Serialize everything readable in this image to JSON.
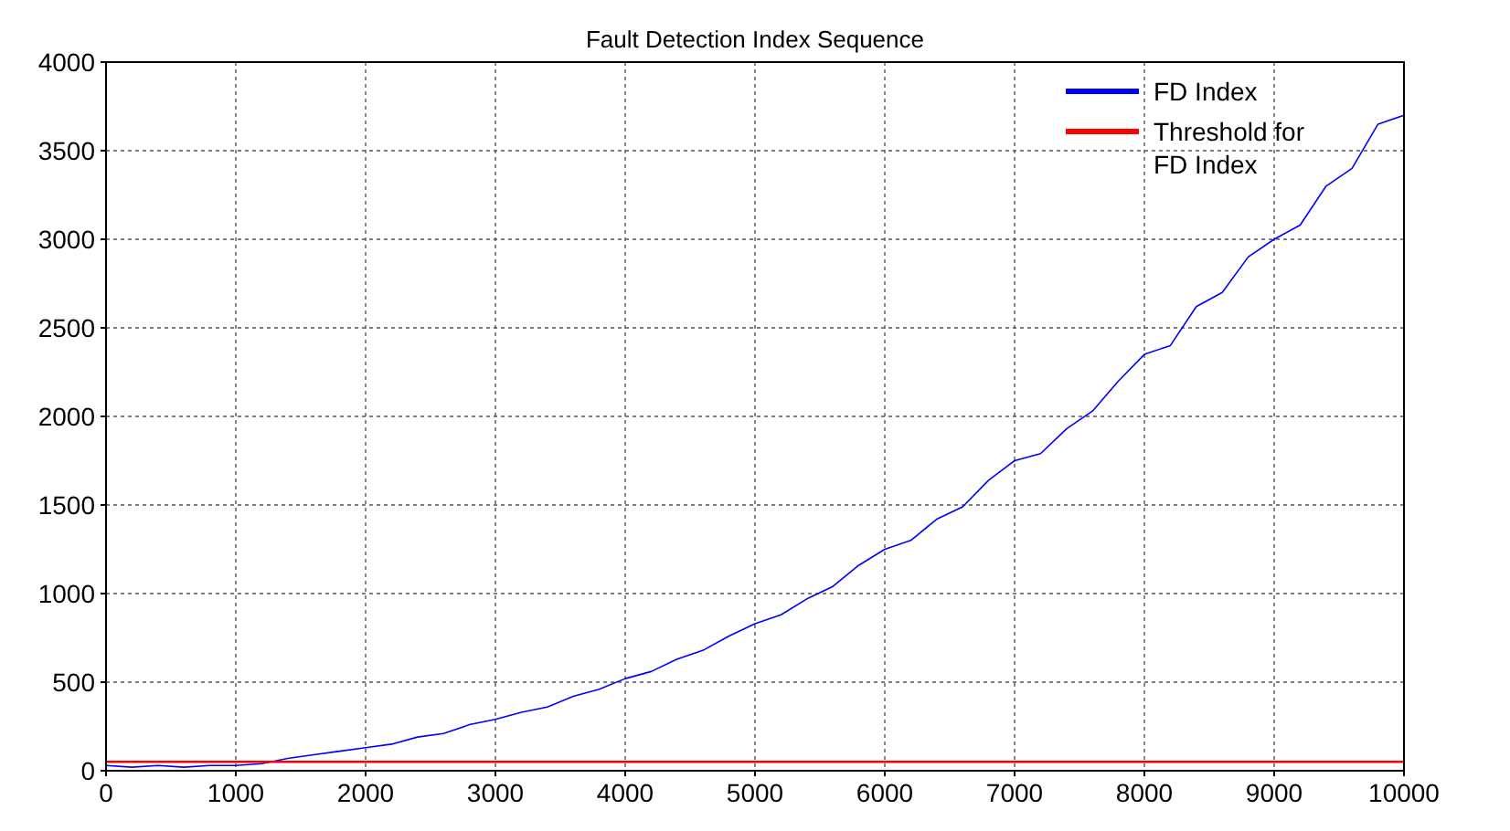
{
  "chart_data": {
    "type": "line",
    "title": "Fault Detection Index Sequence",
    "xlim": [
      0,
      10000
    ],
    "xticks": [
      0,
      1000,
      2000,
      3000,
      4000,
      5000,
      6000,
      7000,
      8000,
      9000,
      10000
    ],
    "ylim": [
      0,
      4000
    ],
    "yticks": [
      0,
      500,
      1000,
      1500,
      2000,
      2500,
      3000,
      3500,
      4000
    ],
    "grid": true,
    "legend": "top right",
    "line_style": "solid",
    "marker": "none",
    "series": [
      {
        "name": "FD Index",
        "color": "#0000ff",
        "x": [
          0,
          200,
          400,
          600,
          800,
          1000,
          1200,
          1400,
          1600,
          1800,
          2000,
          2200,
          2400,
          2600,
          2800,
          3000,
          3200,
          3400,
          3600,
          3800,
          4000,
          4200,
          4400,
          4600,
          4800,
          5000,
          5200,
          5400,
          5600,
          5800,
          6000,
          6200,
          6400,
          6600,
          6800,
          7000,
          7200,
          7400,
          7600,
          7800,
          8000,
          8200,
          8400,
          8600,
          8800,
          9000,
          9200,
          9400,
          9600,
          9800,
          10000
        ],
        "values": [
          30,
          20,
          30,
          20,
          30,
          30,
          40,
          70,
          90,
          110,
          130,
          150,
          190,
          210,
          260,
          290,
          330,
          360,
          420,
          460,
          520,
          560,
          630,
          680,
          760,
          830,
          880,
          970,
          1040,
          1160,
          1250,
          1300,
          1420,
          1490,
          1640,
          1750,
          1790,
          1930,
          2030,
          2200,
          2350,
          2400,
          2620,
          2700,
          2900,
          3000,
          3080,
          3300,
          3400,
          3650,
          3700
        ]
      },
      {
        "name": "Threshold for FD Index",
        "color": "#ff0000",
        "x": [
          0,
          10000
        ],
        "values": [
          50,
          50
        ]
      }
    ]
  }
}
